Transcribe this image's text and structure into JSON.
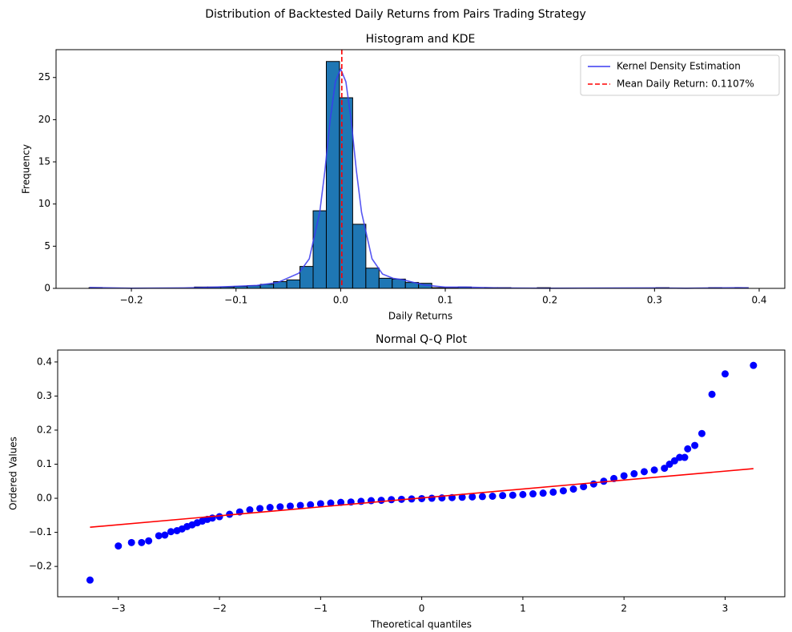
{
  "title": "Distribution of Backtested Daily Returns from Pairs Trading Strategy",
  "chart_data": [
    {
      "type": "histogram",
      "title": "Histogram and KDE",
      "xlabel": "Daily Returns",
      "ylabel": "Frequency",
      "bins": [
        -0.2405,
        -0.2279,
        -0.2153,
        -0.2027,
        -0.1901,
        -0.1775,
        -0.1649,
        -0.1523,
        -0.1397,
        -0.1271,
        -0.1145,
        -0.1019,
        -0.0893,
        -0.0767,
        -0.0641,
        -0.0515,
        -0.0389,
        -0.0263,
        -0.0137,
        -0.0011,
        0.0115,
        0.0241,
        0.0367,
        0.0493,
        0.0619,
        0.0745,
        0.0871,
        0.0997,
        0.1123,
        0.1249,
        0.1375,
        0.1501,
        0.1627,
        0.1753,
        0.1879,
        0.2005,
        0.2131,
        0.2257,
        0.2383,
        0.2509,
        0.2635,
        0.2761,
        0.2887,
        0.3013,
        0.3139,
        0.3265,
        0.3391,
        0.3517,
        0.3643,
        0.3769,
        0.3895
      ],
      "counts": [
        0.08,
        0,
        0,
        0,
        0,
        0,
        0,
        0,
        0.16,
        0.16,
        0.16,
        0.24,
        0.32,
        0.48,
        0.8,
        1.0,
        2.6,
        9.2,
        26.9,
        22.6,
        7.6,
        2.4,
        1.2,
        1.1,
        0.7,
        0.6,
        0.08,
        0.08,
        0.16,
        0,
        0.08,
        0.08,
        0,
        0,
        0.08,
        0,
        0,
        0,
        0,
        0,
        0,
        0,
        0,
        0.08,
        0,
        0,
        0,
        0.08,
        0,
        0.08
      ],
      "color": "#1f77b4",
      "edgecolor": "#000000",
      "series": [
        {
          "name": "Kernel Density Estimation",
          "color": "#3a3af0",
          "x": [
            -0.24,
            -0.2,
            -0.15,
            -0.12,
            -0.1,
            -0.08,
            -0.06,
            -0.04,
            -0.03,
            -0.02,
            -0.015,
            -0.01,
            -0.005,
            0,
            0.005,
            0.01,
            0.015,
            0.02,
            0.03,
            0.04,
            0.05,
            0.06,
            0.07,
            0.08,
            0.1,
            0.12,
            0.15,
            0.2,
            0.3,
            0.33,
            0.38,
            0.39
          ],
          "values": [
            0.1,
            0.02,
            0.05,
            0.15,
            0.25,
            0.35,
            0.7,
            1.8,
            3.5,
            9,
            14,
            20,
            24.5,
            26,
            24.5,
            20,
            14,
            9,
            3.5,
            1.7,
            1.2,
            1.0,
            0.7,
            0.4,
            0.15,
            0.15,
            0.05,
            0.02,
            0.05,
            0.02,
            0.08,
            0.05
          ]
        }
      ],
      "mean": {
        "name": "Mean Daily Return: 0.1107%",
        "value": 0.001107,
        "color": "#ff0000"
      },
      "legend": "upper right",
      "xlim": [
        -0.272,
        0.4245
      ],
      "ylim": [
        0,
        28.3
      ],
      "xticks": [
        {
          "value": -0.2,
          "label": "−0.2"
        },
        {
          "value": -0.1,
          "label": "−0.1"
        },
        {
          "value": 0,
          "label": "0.0"
        },
        0.1,
        0.2,
        0.3,
        0.4
      ],
      "yticks": [
        0,
        5,
        10,
        15,
        20,
        25
      ]
    },
    {
      "type": "scatter",
      "title": "Normal Q-Q Plot",
      "xlabel": "Theoretical quantiles",
      "ylabel": "Ordered Values",
      "color": "#0000ff",
      "x": [
        -3.28,
        -3.0,
        -2.87,
        -2.77,
        -2.7,
        -2.6,
        -2.54,
        -2.48,
        -2.42,
        -2.37,
        -2.32,
        -2.27,
        -2.22,
        -2.17,
        -2.12,
        -2.07,
        -2.0,
        -1.9,
        -1.8,
        -1.7,
        -1.6,
        -1.5,
        -1.4,
        -1.3,
        -1.2,
        -1.1,
        -1.0,
        -0.9,
        -0.8,
        -0.7,
        -0.6,
        -0.5,
        -0.4,
        -0.3,
        -0.2,
        -0.1,
        0,
        0.1,
        0.2,
        0.3,
        0.4,
        0.5,
        0.6,
        0.7,
        0.8,
        0.9,
        1.0,
        1.1,
        1.2,
        1.3,
        1.4,
        1.5,
        1.6,
        1.7,
        1.8,
        1.9,
        2.0,
        2.1,
        2.2,
        2.3,
        2.4,
        2.45,
        2.5,
        2.55,
        2.6,
        2.63,
        2.7,
        2.77,
        2.87,
        3.0,
        3.28
      ],
      "values": [
        -0.24,
        -0.14,
        -0.13,
        -0.13,
        -0.125,
        -0.11,
        -0.108,
        -0.098,
        -0.095,
        -0.09,
        -0.083,
        -0.078,
        -0.072,
        -0.067,
        -0.062,
        -0.058,
        -0.054,
        -0.047,
        -0.04,
        -0.034,
        -0.03,
        -0.027,
        -0.025,
        -0.023,
        -0.021,
        -0.019,
        -0.016,
        -0.014,
        -0.012,
        -0.011,
        -0.009,
        -0.007,
        -0.006,
        -0.004,
        -0.003,
        -0.002,
        -0.001,
        0.0,
        0.001,
        0.002,
        0.003,
        0.004,
        0.005,
        0.006,
        0.008,
        0.009,
        0.011,
        0.013,
        0.015,
        0.018,
        0.022,
        0.027,
        0.034,
        0.042,
        0.05,
        0.058,
        0.066,
        0.072,
        0.078,
        0.083,
        0.088,
        0.1,
        0.11,
        0.12,
        0.12,
        0.145,
        0.155,
        0.19,
        0.305,
        0.365,
        0.39
      ],
      "fit": {
        "color": "#ff0000",
        "x": [
          -3.28,
          3.28
        ],
        "values": [
          -0.085,
          0.087
        ]
      },
      "xlim": [
        -3.6,
        3.59
      ],
      "ylim": [
        -0.289,
        0.435
      ],
      "xticks": [
        {
          "value": -3,
          "label": "−3"
        },
        {
          "value": -2,
          "label": "−2"
        },
        {
          "value": -1,
          "label": "−1"
        },
        0,
        1,
        2,
        3
      ],
      "yticks": [
        {
          "value": -0.2,
          "label": "−0.2"
        },
        {
          "value": -0.1,
          "label": "−0.1"
        },
        {
          "value": 0,
          "label": "0.0"
        },
        0.1,
        0.2,
        0.3,
        0.4
      ]
    }
  ]
}
